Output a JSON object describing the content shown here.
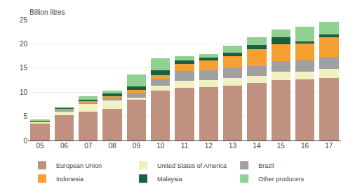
{
  "chart_data": {
    "type": "bar",
    "stacked": true,
    "y_label": "Billion litres",
    "categories": [
      "05",
      "06",
      "07",
      "08",
      "09",
      "10",
      "11",
      "12",
      "13",
      "14",
      "15",
      "16",
      "17"
    ],
    "series": [
      {
        "name": "European Union",
        "color": "#c09080",
        "values": [
          3.5,
          5.2,
          5.9,
          6.6,
          8.4,
          10.3,
          10.9,
          11.1,
          11.4,
          11.9,
          12.5,
          12.6,
          13.0
        ]
      },
      {
        "name": "United States of America",
        "color": "#f0f0c0",
        "values": [
          0.3,
          0.8,
          1.6,
          1.7,
          0.5,
          1.0,
          1.5,
          1.4,
          1.5,
          1.5,
          1.7,
          1.7,
          1.8
        ]
      },
      {
        "name": "Brazil",
        "color": "#a0a0a0",
        "values": [
          0.1,
          0.2,
          0.3,
          0.5,
          1.0,
          1.5,
          2.0,
          2.0,
          2.0,
          2.0,
          2.2,
          2.2,
          2.5
        ]
      },
      {
        "name": "Indonesia",
        "color": "#f5a030",
        "values": [
          0.1,
          0.3,
          0.3,
          0.4,
          0.5,
          0.7,
          1.5,
          2.0,
          2.5,
          3.5,
          3.5,
          3.5,
          4.0
        ]
      },
      {
        "name": "Malaysia",
        "color": "#1a6040",
        "values": [
          0.1,
          0.3,
          0.4,
          0.5,
          0.8,
          1.0,
          0.6,
          0.6,
          0.7,
          0.9,
          1.5,
          0.5,
          0.7
        ]
      },
      {
        "name": "Other producers",
        "color": "#90d090",
        "values": [
          0.2,
          0.2,
          0.6,
          0.6,
          2.5,
          2.5,
          1.0,
          0.8,
          1.5,
          1.5,
          1.5,
          3.0,
          2.5
        ]
      }
    ],
    "ylim": [
      0,
      25
    ],
    "yticks": [
      0,
      5,
      10,
      15,
      20,
      25
    ],
    "grid": true,
    "legend": "bottom"
  }
}
